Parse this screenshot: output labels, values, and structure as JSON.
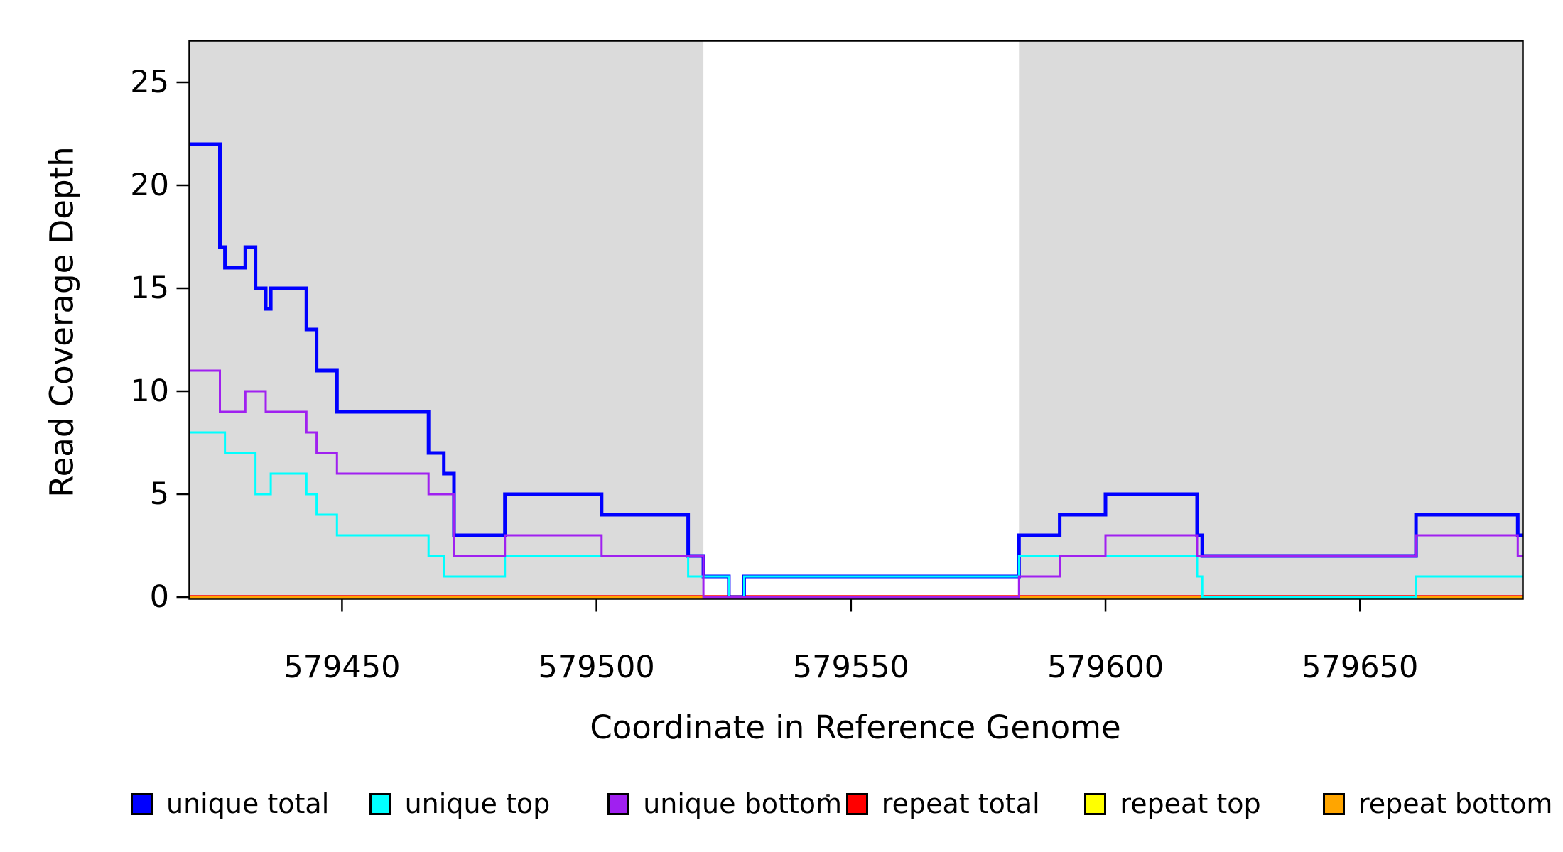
{
  "chart_data": {
    "type": "step",
    "title": "",
    "xlabel": "Coordinate in Reference Genome",
    "ylabel": "Read Coverage Depth",
    "xlim": [
      579420,
      579682
    ],
    "ylim": [
      0,
      27
    ],
    "xticks": [
      579450,
      579500,
      579550,
      579600,
      579650
    ],
    "yticks": [
      0,
      5,
      10,
      15,
      20,
      25
    ],
    "grid": false,
    "plot_background": "#FFFFFF",
    "frame_color": "#000000",
    "shaded_regions": [
      {
        "x0": 579420,
        "x1": 579521,
        "color": "#DBDBDB"
      },
      {
        "x0": 579583,
        "x1": 579682,
        "color": "#DBDBDB"
      }
    ],
    "legend_position": "bottom",
    "legend_stray_dot": ".",
    "series": [
      {
        "name": "unique total",
        "color": "#0000FF",
        "width": 5,
        "draw_order": 3,
        "steps": [
          [
            579420,
            22
          ],
          [
            579426,
            17
          ],
          [
            579427,
            16
          ],
          [
            579431,
            17
          ],
          [
            579433,
            15
          ],
          [
            579435,
            14
          ],
          [
            579436,
            15
          ],
          [
            579443,
            13
          ],
          [
            579445,
            11
          ],
          [
            579449,
            9
          ],
          [
            579467,
            7
          ],
          [
            579470,
            6
          ],
          [
            579472,
            3
          ],
          [
            579482,
            5
          ],
          [
            579501,
            4
          ],
          [
            579518,
            2
          ],
          [
            579521,
            1
          ],
          [
            579526,
            0
          ],
          [
            579529,
            1
          ],
          [
            579583,
            3
          ],
          [
            579591,
            4
          ],
          [
            579600,
            5
          ],
          [
            579618,
            3
          ],
          [
            579619,
            2
          ],
          [
            579661,
            4
          ],
          [
            579681,
            3
          ]
        ]
      },
      {
        "name": "unique top",
        "color": "#00FFFF",
        "width": 3,
        "draw_order": 4,
        "steps": [
          [
            579420,
            8
          ],
          [
            579427,
            7
          ],
          [
            579433,
            5
          ],
          [
            579436,
            6
          ],
          [
            579443,
            5
          ],
          [
            579445,
            4
          ],
          [
            579449,
            3
          ],
          [
            579467,
            2
          ],
          [
            579470,
            1
          ],
          [
            579482,
            2
          ],
          [
            579518,
            1
          ],
          [
            579526,
            0
          ],
          [
            579529,
            1
          ],
          [
            579583,
            2
          ],
          [
            579618,
            1
          ],
          [
            579619,
            0
          ],
          [
            579661,
            1
          ]
        ]
      },
      {
        "name": "unique bottom",
        "color": "#A020F0",
        "width": 3,
        "draw_order": 5,
        "steps": [
          [
            579420,
            11
          ],
          [
            579426,
            9
          ],
          [
            579431,
            10
          ],
          [
            579435,
            9
          ],
          [
            579443,
            8
          ],
          [
            579445,
            7
          ],
          [
            579449,
            6
          ],
          [
            579467,
            5
          ],
          [
            579472,
            2
          ],
          [
            579482,
            3
          ],
          [
            579501,
            2
          ],
          [
            579521,
            0
          ],
          [
            579583,
            1
          ],
          [
            579591,
            2
          ],
          [
            579600,
            3
          ],
          [
            579618,
            2
          ],
          [
            579661,
            3
          ],
          [
            579681,
            2
          ]
        ]
      },
      {
        "name": "repeat total",
        "color": "#FF0000",
        "width": 2.5,
        "draw_order": 1,
        "dy": -1.5,
        "steps": [
          [
            579420,
            0
          ]
        ]
      },
      {
        "name": "repeat top",
        "color": "#FFFF00",
        "width": 3,
        "draw_order": 0,
        "steps": [
          [
            579420,
            0
          ]
        ]
      },
      {
        "name": "repeat bottom",
        "color": "#FFA500",
        "width": 4,
        "draw_order": 2,
        "steps": [
          [
            579420,
            0
          ]
        ]
      }
    ]
  }
}
